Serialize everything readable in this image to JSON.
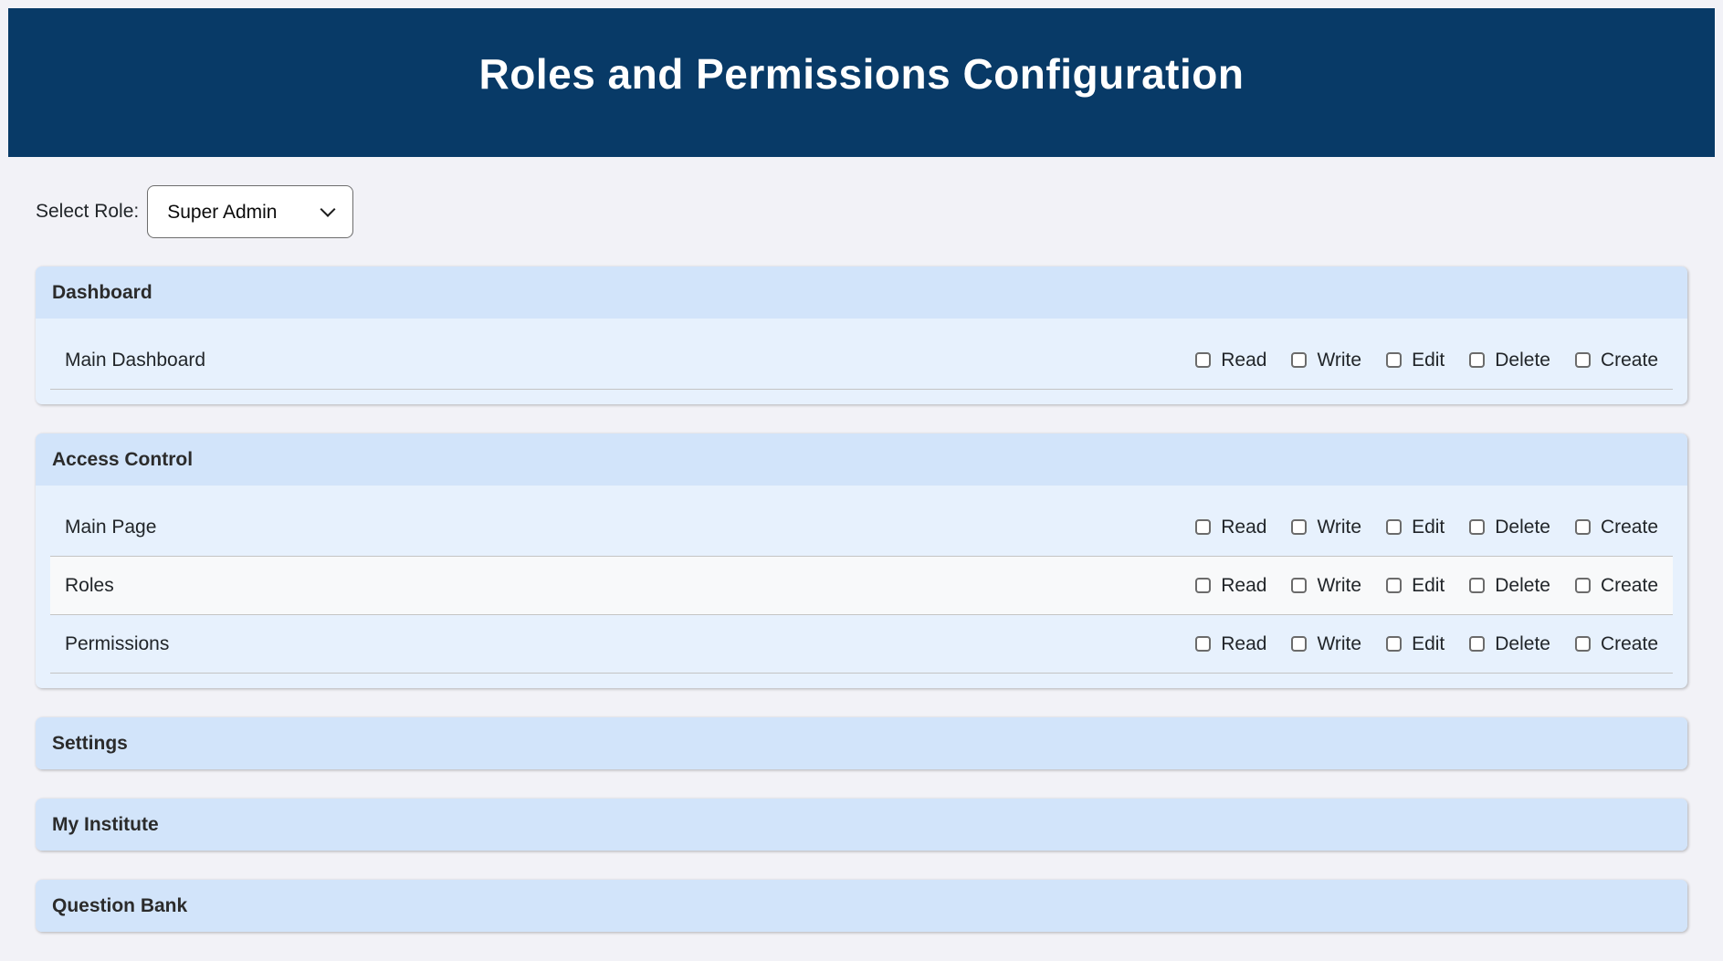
{
  "page": {
    "title": "Roles and Permissions Configuration"
  },
  "role_selector": {
    "label": "Select Role:",
    "selected": "Super Admin",
    "chevron_icon": "chevron-down"
  },
  "permission_labels": [
    "Read",
    "Write",
    "Edit",
    "Delete",
    "Create"
  ],
  "sections": [
    {
      "title": "Dashboard",
      "expanded": true,
      "items": [
        "Main Dashboard"
      ]
    },
    {
      "title": "Access Control",
      "expanded": true,
      "items": [
        "Main Page",
        "Roles",
        "Permissions"
      ]
    },
    {
      "title": "Settings",
      "expanded": false,
      "items": []
    },
    {
      "title": "My Institute",
      "expanded": false,
      "items": []
    },
    {
      "title": "Question Bank",
      "expanded": false,
      "items": []
    }
  ],
  "checkbox_state": "unchecked",
  "colors": {
    "page_bg": "#f2f2f7",
    "header_bg": "#083a67",
    "section_header_bg": "#d2e4fa",
    "section_body_bg": "#e7f1fd",
    "alt_row_bg": "#f8f9fa",
    "row_border": "#c4c4c4"
  }
}
